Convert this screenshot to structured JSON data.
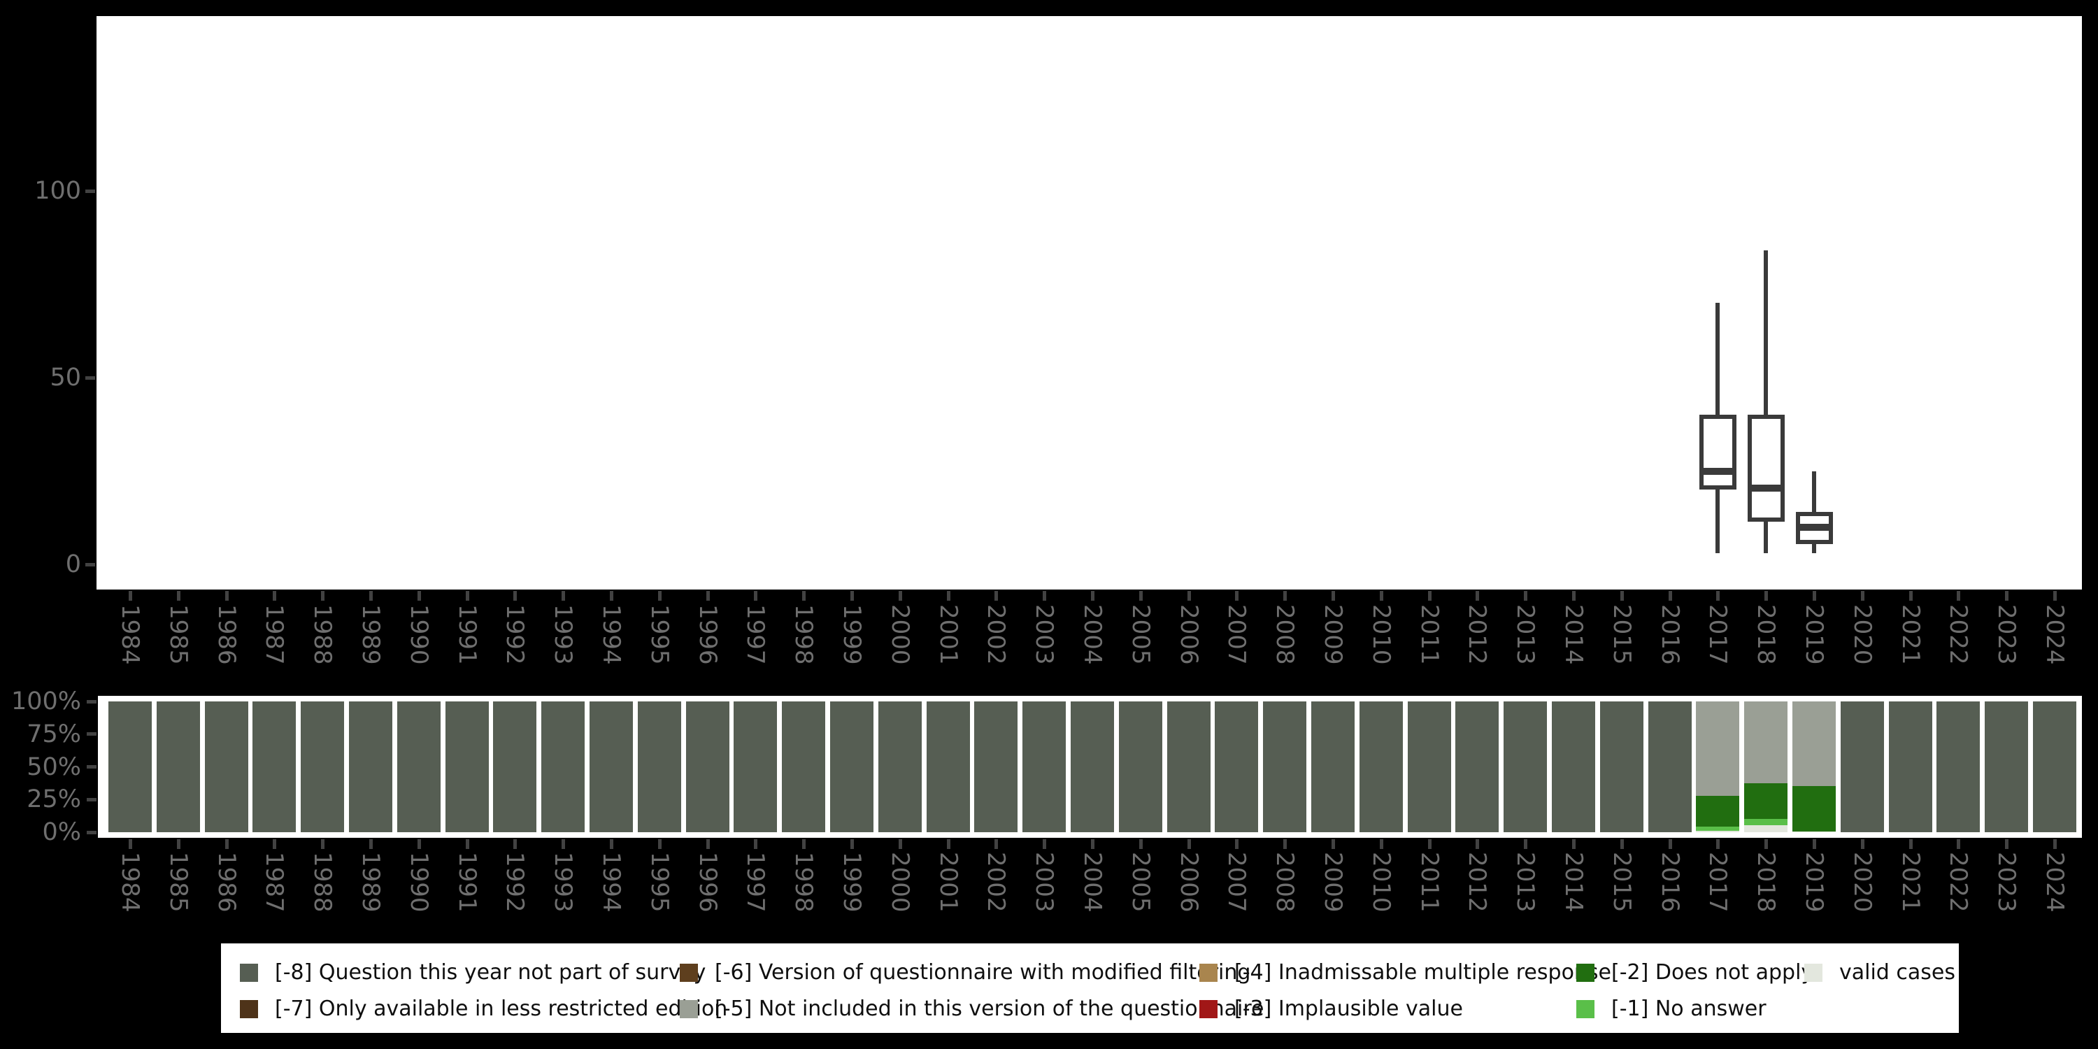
{
  "colors": {
    "background": "#000000",
    "panel": "#ffffff",
    "box_stroke": "#3a3a3a",
    "tick": "#424242",
    "axis_label": "#6f6f6f",
    "legend_text": "#0f0f0f",
    "codes": {
      "-8": "#565e53",
      "-7": "#4e3319",
      "-6": "#5e3f1e",
      "-5": "#9a9f95",
      "-4": "#a9854e",
      "-3": "#a11717",
      "-2": "#216e10",
      "-1": "#5abf49",
      "valid": "#e3e7de"
    }
  },
  "years": [
    "1984",
    "1985",
    "1986",
    "1987",
    "1988",
    "1989",
    "1990",
    "1991",
    "1992",
    "1993",
    "1994",
    "1995",
    "1996",
    "1997",
    "1998",
    "1999",
    "2000",
    "2001",
    "2002",
    "2003",
    "2004",
    "2005",
    "2006",
    "2007",
    "2008",
    "2009",
    "2010",
    "2011",
    "2012",
    "2013",
    "2014",
    "2015",
    "2016",
    "2017",
    "2018",
    "2019",
    "2020",
    "2021",
    "2022",
    "2023",
    "2024"
  ],
  "chart_data": [
    {
      "type": "boxplot",
      "title": "",
      "xlabel": "",
      "ylabel": "",
      "grid": false,
      "legend_position": "none",
      "ylim": [
        0,
        145
      ],
      "y_tick_values": [
        0,
        50,
        100
      ],
      "y_tick_labels": [
        "0",
        "50",
        "100"
      ],
      "x_categories_note": "x axis shows all years 1984-2024; boxplots exist only for 2017-2019",
      "series": [
        {
          "x": "2017",
          "whisker_low": 3,
          "q1": 20,
          "median": 25,
          "q3": 40,
          "whisker_high": 70
        },
        {
          "x": "2018",
          "whisker_low": 3,
          "q1": 11.5,
          "median": 20.5,
          "q3": 40,
          "whisker_high": 84
        },
        {
          "x": "2019",
          "whisker_low": 3,
          "q1": 5.5,
          "median": 10,
          "q3": 14,
          "whisker_high": 25
        }
      ]
    },
    {
      "type": "bar",
      "stacked": true,
      "title": "",
      "xlabel": "",
      "ylabel": "",
      "grid": false,
      "ylim": [
        0,
        100
      ],
      "y_tick_values": [
        0,
        25,
        50,
        75,
        100
      ],
      "y_tick_labels": [
        "0%",
        "25%",
        "50%",
        "75%",
        "100%"
      ],
      "stack_order_bottom_to_top": [
        "valid",
        "-1",
        "-2",
        "-3",
        "-4",
        "-5",
        "-6",
        "-7",
        "-8"
      ],
      "default_stack": {
        "-8": 100
      },
      "stacks": {
        "2017": {
          "valid": 1,
          "-1": 3.5,
          "-2": 23.5,
          "-5": 72
        },
        "2018": {
          "valid": 5.5,
          "-1": 4.5,
          "-2": 27.5,
          "-5": 62.5
        },
        "2019": {
          "valid": 0.5,
          "-2": 35,
          "-5": 64.5
        }
      }
    }
  ],
  "legend": {
    "columns": [
      [
        {
          "code": "-8",
          "label": "[-8] Question this year not part of survey"
        },
        {
          "code": "-7",
          "label": "[-7] Only available in less restricted edition"
        }
      ],
      [
        {
          "code": "-6",
          "label": "[-6] Version of questionnaire with modified filtering"
        },
        {
          "code": "-5",
          "label": "[-5] Not included in this version of the questionnaire"
        }
      ],
      [
        {
          "code": "-4",
          "label": "[-4] Inadmissable multiple response"
        },
        {
          "code": "-3",
          "label": "[-3] Implausible value"
        }
      ],
      [
        {
          "code": "-2",
          "label": "[-2] Does not apply"
        },
        {
          "code": "-1",
          "label": "[-1] No answer"
        }
      ],
      [
        {
          "code": "valid",
          "label": "valid cases"
        }
      ]
    ]
  }
}
